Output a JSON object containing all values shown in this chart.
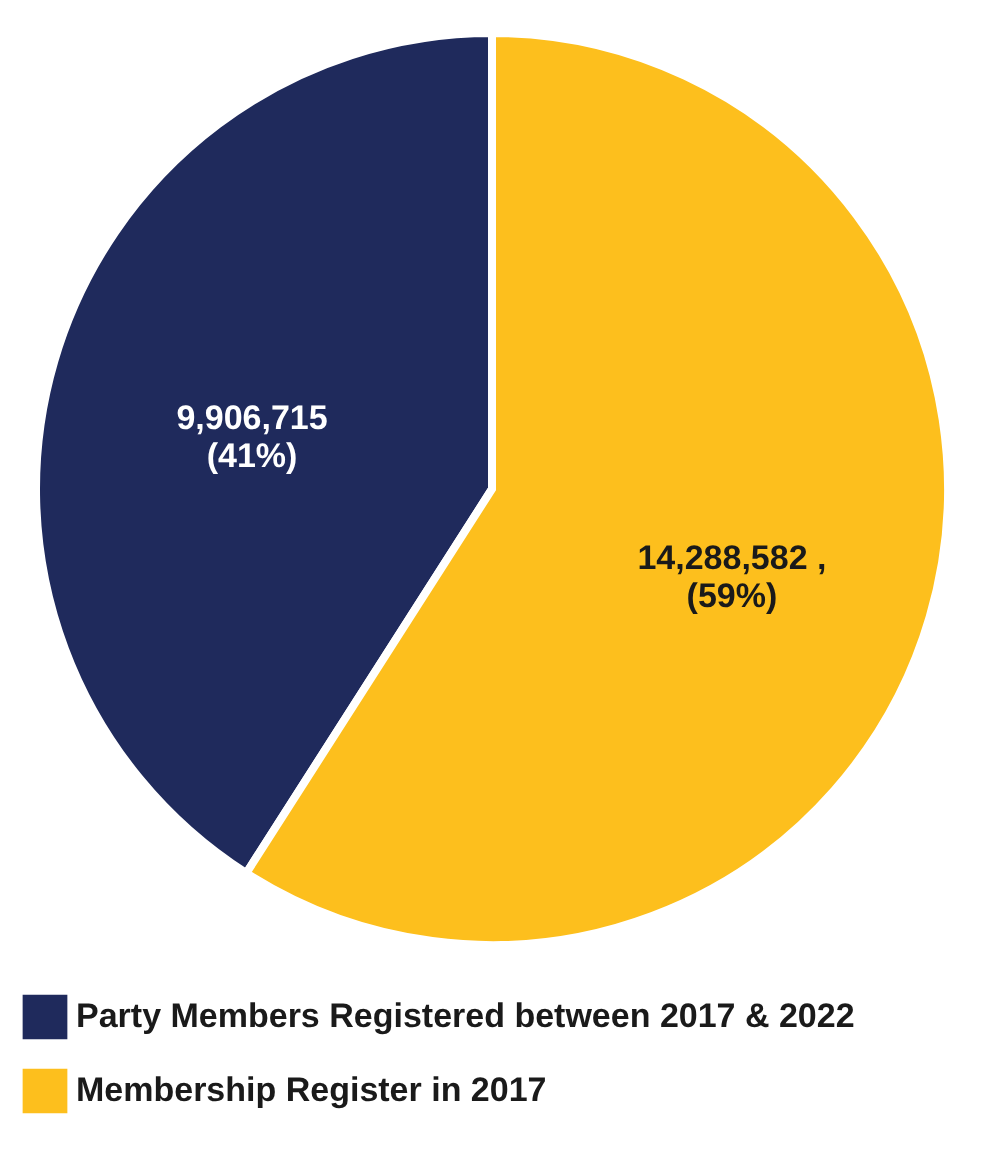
{
  "chart_data": {
    "type": "pie",
    "categories": [
      "Party Members Registered between 2017 & 2022",
      "Membership Register in 2017"
    ],
    "values": [
      9906715,
      14288582
    ],
    "colors": [
      "#1f2a5c",
      "#fdbf1d"
    ],
    "value_labels": [
      "9,906,715\n(41%)",
      "14,288,582 ,\n(59%)"
    ],
    "legend": "bottom"
  }
}
